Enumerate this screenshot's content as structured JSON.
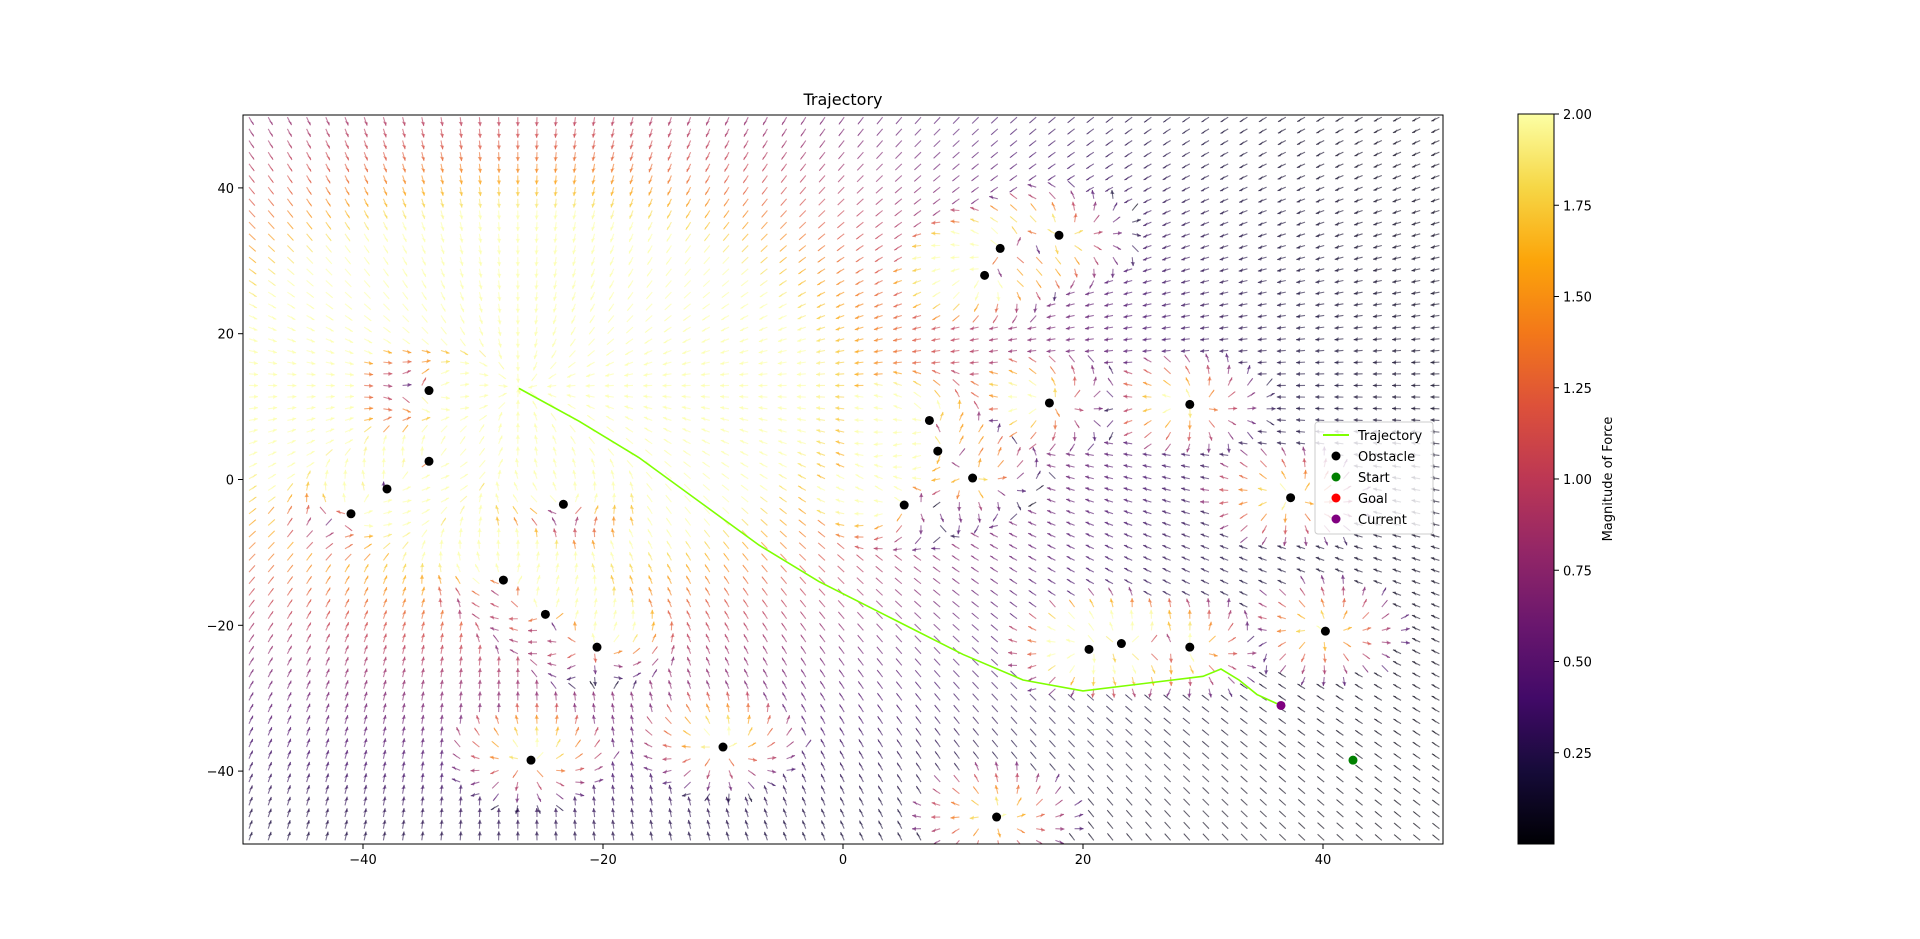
{
  "chart_data": {
    "type": "quiver",
    "title": "Trajectory",
    "xlim": [
      -50,
      50
    ],
    "ylim": [
      -50,
      50
    ],
    "x_ticks": [
      -40,
      -20,
      0,
      20,
      40
    ],
    "y_ticks": [
      40,
      20,
      0,
      -20,
      -40
    ],
    "grid": false,
    "goal": {
      "x": -27,
      "y": 12.5
    },
    "start": {
      "x": 42.5,
      "y": -38.5
    },
    "current": {
      "x": 36.5,
      "y": -31
    },
    "obstacles": [
      {
        "x": -34.5,
        "y": 12.2
      },
      {
        "x": -34.5,
        "y": 2.5
      },
      {
        "x": -38,
        "y": -1.3
      },
      {
        "x": -41,
        "y": -4.7
      },
      {
        "x": -23.3,
        "y": -3.4
      },
      {
        "x": -28.3,
        "y": -13.8
      },
      {
        "x": -24.8,
        "y": -18.5
      },
      {
        "x": -20.5,
        "y": -23
      },
      {
        "x": -26,
        "y": -38.5
      },
      {
        "x": -10,
        "y": -36.7
      },
      {
        "x": 12.8,
        "y": -46.3
      },
      {
        "x": 20.5,
        "y": -23.3
      },
      {
        "x": 23.2,
        "y": -22.5
      },
      {
        "x": 28.9,
        "y": -23
      },
      {
        "x": 40.2,
        "y": -20.8
      },
      {
        "x": 37.3,
        "y": -2.5
      },
      {
        "x": 28.9,
        "y": 10.3
      },
      {
        "x": 17.2,
        "y": 10.5
      },
      {
        "x": 7.2,
        "y": 8.1
      },
      {
        "x": 7.9,
        "y": 3.9
      },
      {
        "x": 10.8,
        "y": 0.2
      },
      {
        "x": 5.1,
        "y": -3.5
      },
      {
        "x": 11.8,
        "y": 28
      },
      {
        "x": 13.1,
        "y": 31.7
      },
      {
        "x": 18,
        "y": 33.5
      }
    ],
    "trajectory": [
      [
        -27,
        12.5
      ],
      [
        -22,
        8
      ],
      [
        -17,
        3
      ],
      [
        -12,
        -3
      ],
      [
        -7,
        -9
      ],
      [
        -2,
        -14
      ],
      [
        4,
        -19
      ],
      [
        10,
        -24
      ],
      [
        15,
        -27.5
      ],
      [
        20,
        -29
      ],
      [
        25,
        -28
      ],
      [
        30,
        -27
      ],
      [
        31.5,
        -26
      ],
      [
        33,
        -27.5
      ],
      [
        34.5,
        -29.5
      ],
      [
        36.5,
        -31
      ]
    ],
    "legend": {
      "placement": "right",
      "entries": [
        "Trajectory",
        "Obstacle",
        "Start",
        "Goal",
        "Current"
      ]
    },
    "colorbar": {
      "label": "Magnitude of Force",
      "min": 0,
      "max": 2.0,
      "ticks": [
        "2.00",
        "1.75",
        "1.50",
        "1.25",
        "1.00",
        "0.75",
        "0.50",
        "0.25"
      ],
      "colormap": "inferno"
    },
    "colors": {
      "trajectory": "#7fff00",
      "obstacle": "#000000",
      "start": "#008000",
      "goal": "#ff0000",
      "current": "#800080"
    }
  }
}
